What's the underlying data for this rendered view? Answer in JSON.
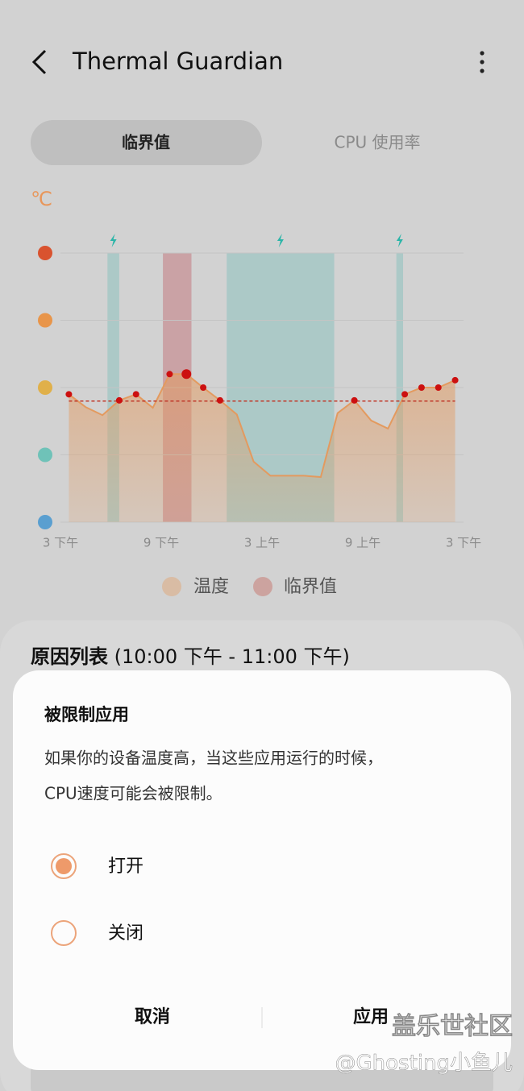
{
  "header": {
    "title": "Thermal Guardian"
  },
  "tabs": [
    "临界值",
    "CPU 使用率"
  ],
  "chart_data": {
    "type": "line",
    "unit": "℃",
    "x": [
      0.5,
      1.5,
      2.5,
      3.5,
      4.5,
      5.5,
      6.5,
      7.5,
      8.5,
      9.5,
      10.5,
      11.5,
      12.5,
      13.5,
      14.5,
      15.5,
      16.5,
      17.5,
      18.5,
      19.5,
      20.5,
      21.5,
      22.5,
      23.5
    ],
    "xlim": [
      0,
      24
    ],
    "xticks": [
      {
        "value": 0,
        "label": "3 下午"
      },
      {
        "value": 6,
        "label": "9 下午"
      },
      {
        "value": 12,
        "label": "3 上午"
      },
      {
        "value": 18,
        "label": "9 上午"
      },
      {
        "value": 24,
        "label": "3 下午"
      }
    ],
    "ylim": [
      0,
      4
    ],
    "yticks": [
      0,
      1,
      2,
      3,
      4
    ],
    "grid": true,
    "series": [
      {
        "name": "温度",
        "color": "#e39a5f",
        "values": [
          1.9,
          1.71,
          1.59,
          1.81,
          1.9,
          1.7,
          2.2,
          2.2,
          2.0,
          1.81,
          1.6,
          0.9,
          0.69,
          0.69,
          0.69,
          0.67,
          1.62,
          1.81,
          1.51,
          1.39,
          1.9,
          2.0,
          2.0,
          2.11
        ]
      }
    ],
    "dots": [
      0,
      3,
      4,
      6,
      7,
      8,
      9,
      17,
      20,
      21,
      22,
      23
    ],
    "highlight": 7,
    "threshold": {
      "name": "临界值",
      "value": 1.8,
      "color": "#c0392b"
    },
    "throttle_bands": [
      [
        2.8,
        3.5
      ],
      [
        9.9,
        16.3
      ],
      [
        20.0,
        20.4
      ]
    ],
    "threshold_bands": [
      [
        6.1,
        7.8
      ]
    ]
  },
  "reason_list": {
    "title": "原因列表",
    "range": "(10:00 下午 - 11:00 下午)"
  },
  "dialog": {
    "title": "被限制应用",
    "lines": [
      "如果你的设备温度高，当这些应用运行的时候，",
      "CPU速度可能会被限制。"
    ],
    "options": [
      {
        "label": "打开",
        "selected": true
      },
      {
        "label": "关闭",
        "selected": false
      }
    ],
    "buttons": [
      "取消",
      "应用"
    ]
  },
  "watermark": [
    "盖乐世社区",
    "@Ghosting小鱼儿"
  ]
}
